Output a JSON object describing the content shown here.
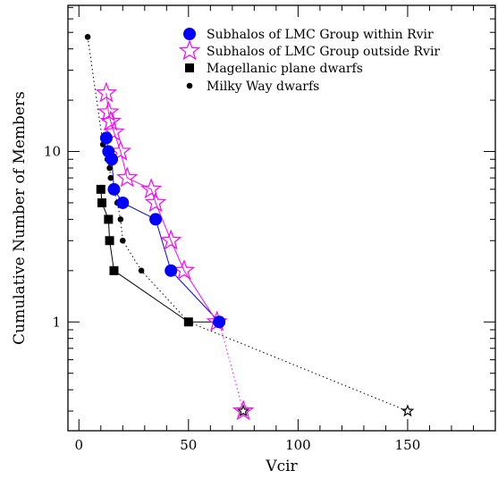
{
  "chart_data": {
    "type": "scatter",
    "title": "",
    "xlabel": "Vcir",
    "ylabel": "Cumulative Number of Members",
    "xlim": [
      -5,
      190
    ],
    "ylim": [
      0.23,
      72
    ],
    "yscale": "log",
    "xticks": [
      0,
      50,
      100,
      150
    ],
    "xtick_labels": [
      "0",
      "50",
      "100",
      "150"
    ],
    "yticks": [
      1,
      10
    ],
    "ytick_labels": [
      "1",
      "10"
    ],
    "grid": false,
    "legend_position": "top-right",
    "series": [
      {
        "name": "Subhalos of LMC Group within Rvir",
        "marker": "circle",
        "line": "solid",
        "color": "#0000ff",
        "x": [
          12.5,
          13.5,
          15,
          16,
          20,
          35,
          42,
          64
        ],
        "y": [
          12,
          10,
          9,
          6,
          5,
          4,
          2,
          1
        ]
      },
      {
        "name": "Subhalos of LMC Group outside Rvir",
        "marker": "star",
        "line": "solid",
        "color": "#ff00ff",
        "x": [
          12.5,
          13.5,
          14.5,
          16,
          19,
          22,
          33,
          35,
          42,
          48,
          63
        ],
        "y": [
          22,
          17,
          15,
          13,
          10,
          7,
          6,
          5,
          3,
          2,
          1
        ]
      },
      {
        "name": "Magellanic plane dwarfs",
        "marker": "square",
        "line": "solid",
        "color": "#000000",
        "x": [
          10,
          10.5,
          13.5,
          14,
          16,
          50
        ],
        "y": [
          6,
          5,
          4,
          3,
          2,
          1
        ]
      },
      {
        "name": "Milky Way dwarfs",
        "marker": "dot",
        "line": "dotted",
        "color": "#000000",
        "x": [
          4,
          11,
          12,
          13,
          14,
          14.5,
          16,
          17.5,
          19,
          20,
          28.5,
          50
        ],
        "y": [
          47,
          11,
          10,
          9,
          8,
          7,
          6,
          5,
          4,
          3,
          2,
          1
        ]
      }
    ],
    "extra_segments": [
      {
        "from": [
          64,
          1
        ],
        "to": [
          75,
          0.3
        ],
        "color": "#ff00ff",
        "dash": "dotted"
      },
      {
        "from": [
          50,
          1
        ],
        "to": [
          150,
          0.3
        ],
        "color": "#000000",
        "dash": "dotted"
      },
      {
        "from": [
          50,
          1
        ],
        "to": [
          63,
          1
        ],
        "color": "#000000",
        "dash": "solid"
      }
    ],
    "extra_markers": [
      {
        "x": 75,
        "y": 0.3,
        "marker": "star",
        "color": "#ff00ff"
      },
      {
        "x": 75,
        "y": 0.3,
        "marker": "star",
        "color": "#000000"
      },
      {
        "x": 150,
        "y": 0.3,
        "marker": "star",
        "color": "#000000"
      }
    ]
  }
}
